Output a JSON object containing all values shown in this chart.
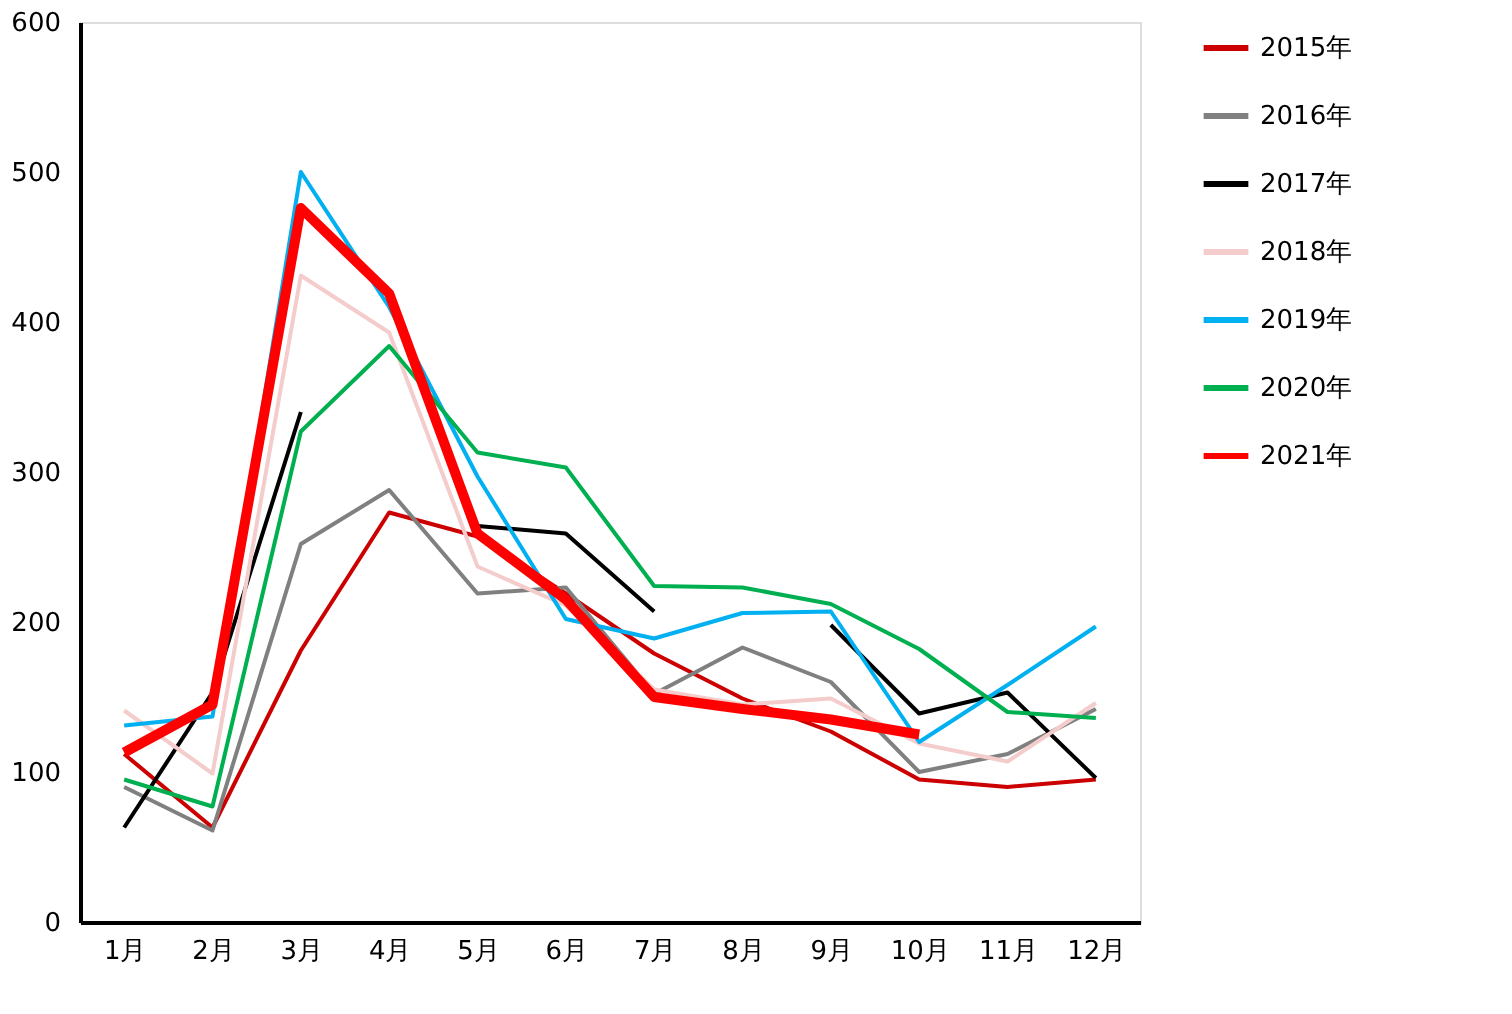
{
  "chart_data": {
    "type": "line",
    "categories": [
      "1月",
      "2月",
      "3月",
      "4月",
      "5月",
      "6月",
      "7月",
      "8月",
      "9月",
      "10月",
      "11月",
      "12月"
    ],
    "ylim": [
      0,
      600
    ],
    "yticks": [
      0,
      100,
      200,
      300,
      400,
      500,
      600
    ],
    "grid": false,
    "legend": "right",
    "marker": "none",
    "line_style": "solid",
    "series": [
      {
        "name": "2015年",
        "color": "#cc0000",
        "values": [
          112,
          63,
          181,
          273,
          257,
          219,
          179,
          149,
          127,
          95,
          90,
          95
        ]
      },
      {
        "name": "2016年",
        "color": "#808080",
        "values": [
          90,
          61,
          252,
          288,
          219,
          223,
          152,
          183,
          160,
          100,
          112,
          142
        ]
      },
      {
        "name": "2017年",
        "color": "#000000",
        "values": [
          63,
          153,
          340,
          null,
          264,
          259,
          207,
          null,
          198,
          139,
          153,
          96
        ]
      },
      {
        "name": "2018年",
        "color": "#f4cccc",
        "values": [
          141,
          99,
          431,
          393,
          237,
          211,
          155,
          145,
          149,
          119,
          107,
          146
        ]
      },
      {
        "name": "2019年",
        "color": "#00b0f0",
        "values": [
          131,
          137,
          500,
          410,
          297,
          202,
          189,
          206,
          207,
          120,
          158,
          197
        ]
      },
      {
        "name": "2020年",
        "color": "#00b050",
        "values": [
          95,
          77,
          327,
          384,
          313,
          303,
          224,
          223,
          212,
          182,
          140,
          136
        ]
      },
      {
        "name": "2021年",
        "color": "#ff0000",
        "values": [
          113,
          145,
          476,
          419,
          259,
          215,
          150,
          142,
          135,
          125,
          null,
          null
        ]
      }
    ]
  }
}
